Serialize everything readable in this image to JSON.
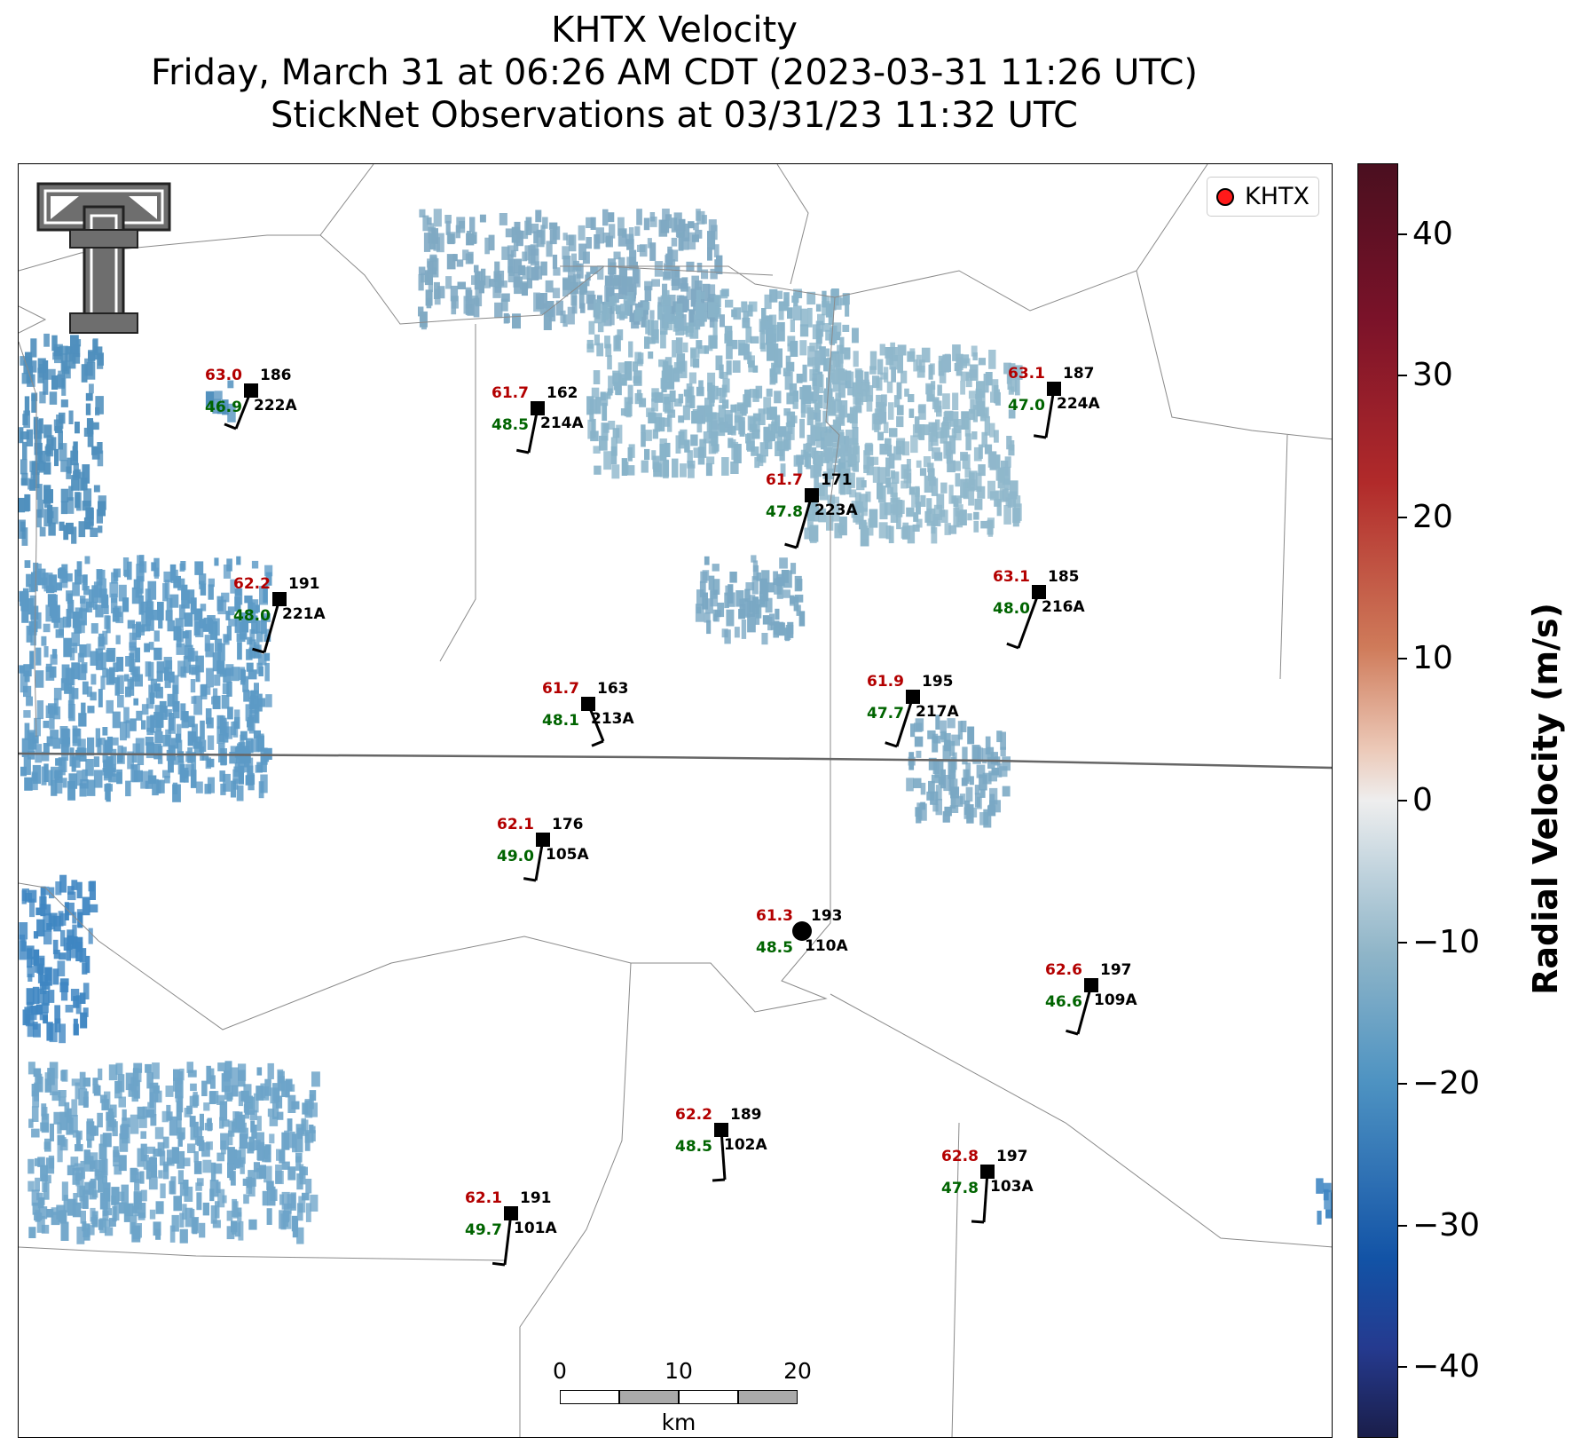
{
  "title": {
    "line1": "KHTX Velocity",
    "line2": "Friday, March 31 at 06:26 AM CDT (2023-03-31 11:26 UTC)",
    "line3": "StickNet Observations at 03/31/23 11:32 UTC"
  },
  "legend": {
    "label": "KHTX",
    "marker_color": "#ff1a1a"
  },
  "colorbar": {
    "label": "Radial Velocity (m/s)",
    "ticks": [
      "40",
      "30",
      "20",
      "10",
      "0",
      "−10",
      "−20",
      "−30",
      "−40"
    ],
    "tick_values": [
      40,
      30,
      20,
      10,
      0,
      -10,
      -20,
      -30,
      -40
    ],
    "range": [
      -45,
      45
    ]
  },
  "scalebar": {
    "labels": [
      "0",
      "10",
      "20"
    ],
    "unit": "km"
  },
  "colors": {
    "temperature": "#b30000",
    "dewpoint": "#006400",
    "station": "#000000"
  },
  "stations": [
    {
      "id": "222A",
      "temp": "63.0",
      "dew": "46.9",
      "dir": "186"
    },
    {
      "id": "214A",
      "temp": "61.7",
      "dew": "48.5",
      "dir": "162"
    },
    {
      "id": "223A",
      "temp": "61.7",
      "dew": "47.8",
      "dir": "171"
    },
    {
      "id": "224A",
      "temp": "63.1",
      "dew": "47.0",
      "dir": "187"
    },
    {
      "id": "221A",
      "temp": "62.2",
      "dew": "48.0",
      "dir": "191"
    },
    {
      "id": "216A",
      "temp": "63.1",
      "dew": "48.0",
      "dir": "185"
    },
    {
      "id": "213A",
      "temp": "61.7",
      "dew": "48.1",
      "dir": "163"
    },
    {
      "id": "217A",
      "temp": "61.9",
      "dew": "47.7",
      "dir": "195"
    },
    {
      "id": "105A",
      "temp": "62.1",
      "dew": "49.0",
      "dir": "176"
    },
    {
      "id": "110A",
      "temp": "61.3",
      "dew": "48.5",
      "dir": "193"
    },
    {
      "id": "109A",
      "temp": "62.6",
      "dew": "46.6",
      "dir": "197"
    },
    {
      "id": "102A",
      "temp": "62.2",
      "dew": "48.5",
      "dir": "189"
    },
    {
      "id": "103A",
      "temp": "62.8",
      "dew": "47.8",
      "dir": "197"
    },
    {
      "id": "101A",
      "temp": "62.1",
      "dew": "49.7",
      "dir": "191"
    }
  ]
}
